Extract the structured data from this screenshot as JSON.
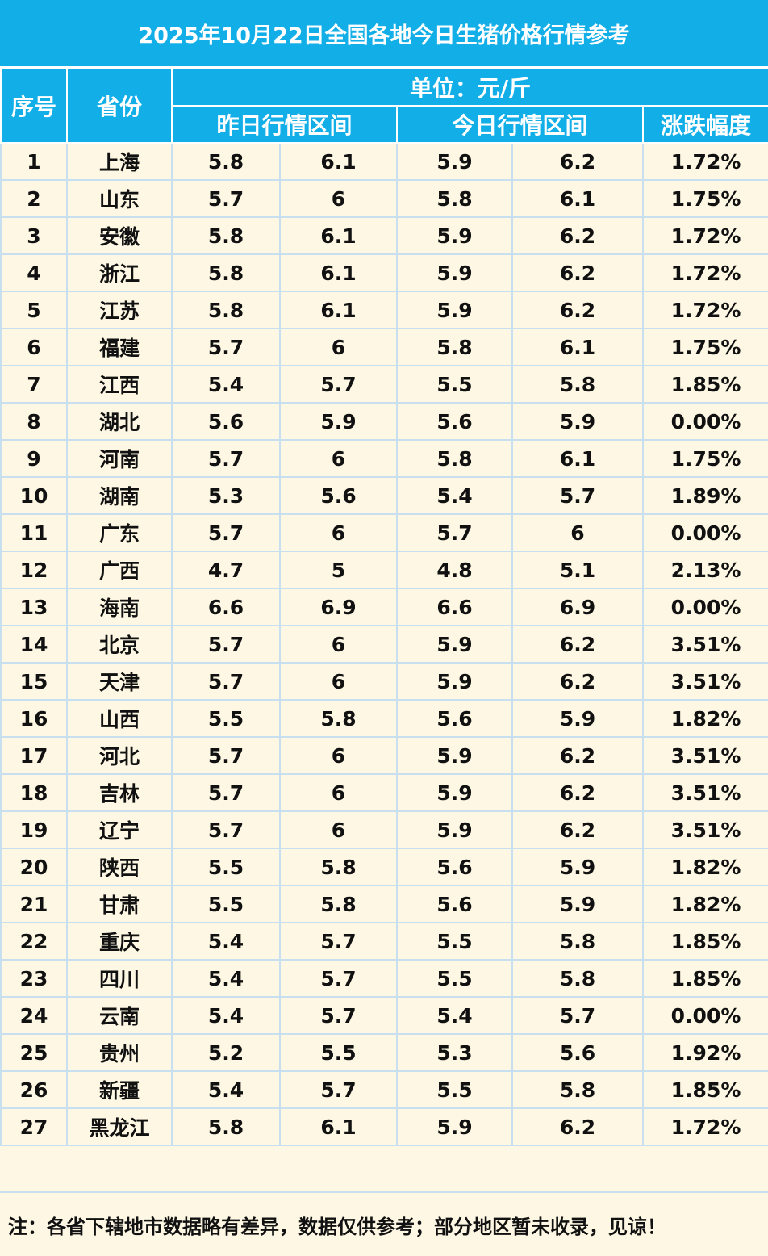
{
  "title": "2025年10月22日全国各地今日生猪价格行情参考",
  "headers": {
    "index": "序号",
    "province": "省份",
    "unit": "单位：元/斤",
    "yesterday": "昨日行情区间",
    "today": "今日行情区间",
    "change": "涨跌幅度"
  },
  "rows": [
    {
      "idx": "1",
      "prov": "上海",
      "y_lo": "5.8",
      "y_hi": "6.1",
      "t_lo": "5.9",
      "t_hi": "6.2",
      "chg": "1.72%"
    },
    {
      "idx": "2",
      "prov": "山东",
      "y_lo": "5.7",
      "y_hi": "6",
      "t_lo": "5.8",
      "t_hi": "6.1",
      "chg": "1.75%"
    },
    {
      "idx": "3",
      "prov": "安徽",
      "y_lo": "5.8",
      "y_hi": "6.1",
      "t_lo": "5.9",
      "t_hi": "6.2",
      "chg": "1.72%"
    },
    {
      "idx": "4",
      "prov": "浙江",
      "y_lo": "5.8",
      "y_hi": "6.1",
      "t_lo": "5.9",
      "t_hi": "6.2",
      "chg": "1.72%"
    },
    {
      "idx": "5",
      "prov": "江苏",
      "y_lo": "5.8",
      "y_hi": "6.1",
      "t_lo": "5.9",
      "t_hi": "6.2",
      "chg": "1.72%"
    },
    {
      "idx": "6",
      "prov": "福建",
      "y_lo": "5.7",
      "y_hi": "6",
      "t_lo": "5.8",
      "t_hi": "6.1",
      "chg": "1.75%"
    },
    {
      "idx": "7",
      "prov": "江西",
      "y_lo": "5.4",
      "y_hi": "5.7",
      "t_lo": "5.5",
      "t_hi": "5.8",
      "chg": "1.85%"
    },
    {
      "idx": "8",
      "prov": "湖北",
      "y_lo": "5.6",
      "y_hi": "5.9",
      "t_lo": "5.6",
      "t_hi": "5.9",
      "chg": "0.00%"
    },
    {
      "idx": "9",
      "prov": "河南",
      "y_lo": "5.7",
      "y_hi": "6",
      "t_lo": "5.8",
      "t_hi": "6.1",
      "chg": "1.75%"
    },
    {
      "idx": "10",
      "prov": "湖南",
      "y_lo": "5.3",
      "y_hi": "5.6",
      "t_lo": "5.4",
      "t_hi": "5.7",
      "chg": "1.89%"
    },
    {
      "idx": "11",
      "prov": "广东",
      "y_lo": "5.7",
      "y_hi": "6",
      "t_lo": "5.7",
      "t_hi": "6",
      "chg": "0.00%"
    },
    {
      "idx": "12",
      "prov": "广西",
      "y_lo": "4.7",
      "y_hi": "5",
      "t_lo": "4.8",
      "t_hi": "5.1",
      "chg": "2.13%"
    },
    {
      "idx": "13",
      "prov": "海南",
      "y_lo": "6.6",
      "y_hi": "6.9",
      "t_lo": "6.6",
      "t_hi": "6.9",
      "chg": "0.00%"
    },
    {
      "idx": "14",
      "prov": "北京",
      "y_lo": "5.7",
      "y_hi": "6",
      "t_lo": "5.9",
      "t_hi": "6.2",
      "chg": "3.51%"
    },
    {
      "idx": "15",
      "prov": "天津",
      "y_lo": "5.7",
      "y_hi": "6",
      "t_lo": "5.9",
      "t_hi": "6.2",
      "chg": "3.51%"
    },
    {
      "idx": "16",
      "prov": "山西",
      "y_lo": "5.5",
      "y_hi": "5.8",
      "t_lo": "5.6",
      "t_hi": "5.9",
      "chg": "1.82%"
    },
    {
      "idx": "17",
      "prov": "河北",
      "y_lo": "5.7",
      "y_hi": "6",
      "t_lo": "5.9",
      "t_hi": "6.2",
      "chg": "3.51%"
    },
    {
      "idx": "18",
      "prov": "吉林",
      "y_lo": "5.7",
      "y_hi": "6",
      "t_lo": "5.9",
      "t_hi": "6.2",
      "chg": "3.51%"
    },
    {
      "idx": "19",
      "prov": "辽宁",
      "y_lo": "5.7",
      "y_hi": "6",
      "t_lo": "5.9",
      "t_hi": "6.2",
      "chg": "3.51%"
    },
    {
      "idx": "20",
      "prov": "陕西",
      "y_lo": "5.5",
      "y_hi": "5.8",
      "t_lo": "5.6",
      "t_hi": "5.9",
      "chg": "1.82%"
    },
    {
      "idx": "21",
      "prov": "甘肃",
      "y_lo": "5.5",
      "y_hi": "5.8",
      "t_lo": "5.6",
      "t_hi": "5.9",
      "chg": "1.82%"
    },
    {
      "idx": "22",
      "prov": "重庆",
      "y_lo": "5.4",
      "y_hi": "5.7",
      "t_lo": "5.5",
      "t_hi": "5.8",
      "chg": "1.85%"
    },
    {
      "idx": "23",
      "prov": "四川",
      "y_lo": "5.4",
      "y_hi": "5.7",
      "t_lo": "5.5",
      "t_hi": "5.8",
      "chg": "1.85%"
    },
    {
      "idx": "24",
      "prov": "云南",
      "y_lo": "5.4",
      "y_hi": "5.7",
      "t_lo": "5.4",
      "t_hi": "5.7",
      "chg": "0.00%"
    },
    {
      "idx": "25",
      "prov": "贵州",
      "y_lo": "5.2",
      "y_hi": "5.5",
      "t_lo": "5.3",
      "t_hi": "5.6",
      "chg": "1.92%"
    },
    {
      "idx": "26",
      "prov": "新疆",
      "y_lo": "5.4",
      "y_hi": "5.7",
      "t_lo": "5.5",
      "t_hi": "5.8",
      "chg": "1.85%"
    },
    {
      "idx": "27",
      "prov": "黑龙江",
      "y_lo": "5.8",
      "y_hi": "6.1",
      "t_lo": "5.9",
      "t_hi": "6.2",
      "chg": "1.72%"
    }
  ],
  "note": "注：各省下辖地市数据略有差异，数据仅供参考；部分地区暂未收录，见谅！",
  "colors": {
    "header_bg": "#12aee8",
    "rise_bg": "#ff0000",
    "body_bg": "#fdf7e3",
    "grid_line": "#c8dff0"
  }
}
